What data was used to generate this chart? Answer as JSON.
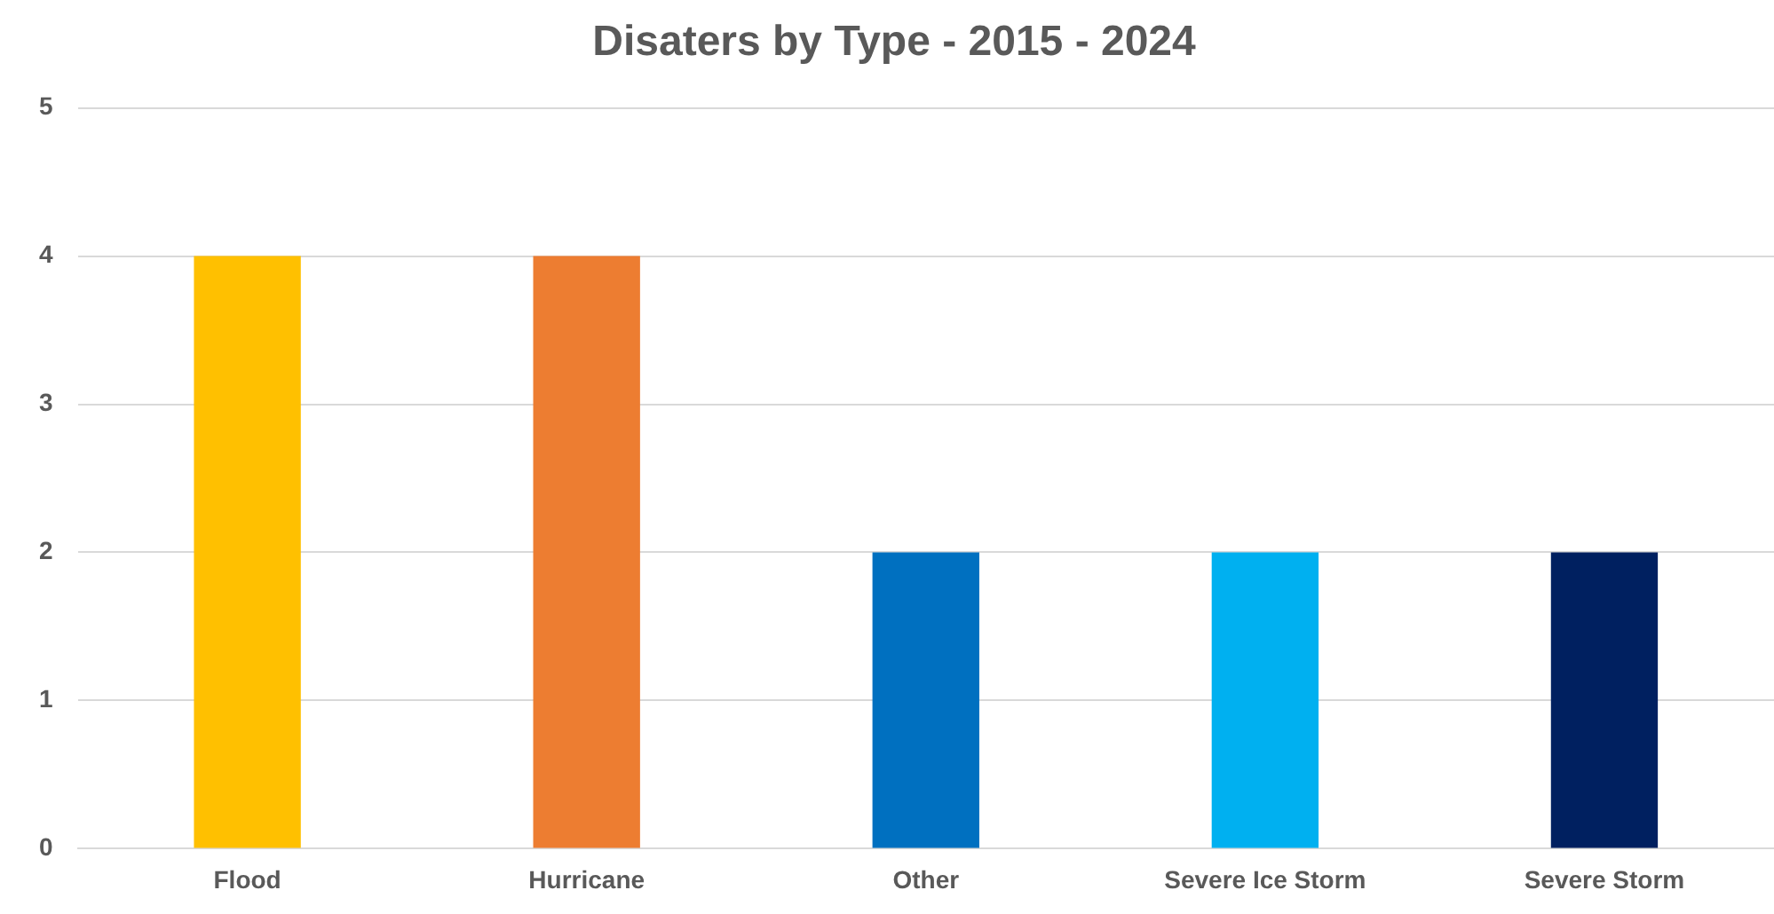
{
  "chart_data": {
    "type": "bar",
    "title": "Disaters by Type - 2015 - 2024",
    "categories": [
      "Flood",
      "Hurricane",
      "Other",
      "Severe Ice Storm",
      "Severe Storm"
    ],
    "values": [
      4,
      4,
      2,
      2,
      2
    ],
    "colors": [
      "#ffc000",
      "#ed7d31",
      "#0070c0",
      "#00b0f0",
      "#002060"
    ],
    "ylim": [
      0,
      5
    ],
    "yticks": [
      0,
      1,
      2,
      3,
      4,
      5
    ],
    "grid": "y",
    "legend": false
  }
}
